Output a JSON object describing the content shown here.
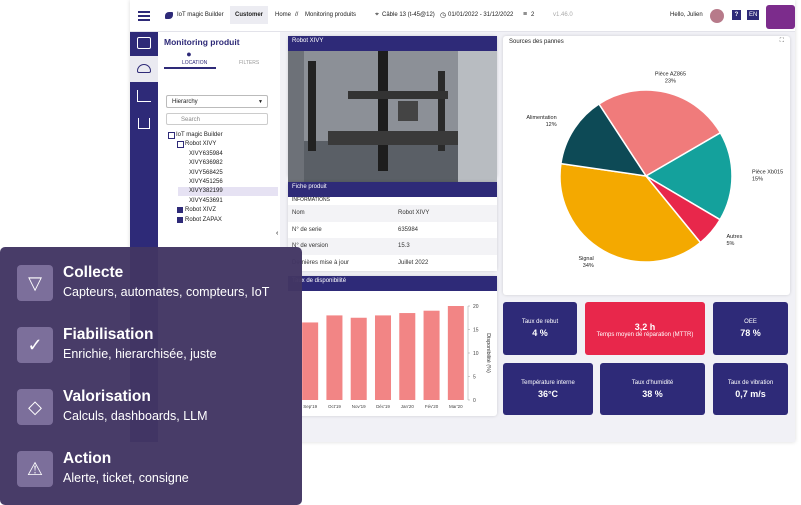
{
  "header": {
    "app_name": "IoT magic Builder",
    "tab": "Customer",
    "breadcrumb": [
      "Home",
      "//",
      "Monitoring produits"
    ],
    "location": "Câble 13 (t-45@12)",
    "date_range": "01/01/2022 - 31/12/2022",
    "filter_count": "2",
    "version": "v1.46.0",
    "greeting": "Hello, Julien",
    "help": "?",
    "language": "EN"
  },
  "panel": {
    "title": "Monitoring produit",
    "tabs": [
      "LOCATION",
      "FILTERS"
    ],
    "select": "Hierarchy",
    "search_placeholder": "Search",
    "tree": {
      "label": "IoT magic Builder",
      "children": [
        {
          "label": "Robot XIVY",
          "children": [
            {
              "label": "XIVY635984"
            },
            {
              "label": "XIVY636982"
            },
            {
              "label": "XIVY568425"
            },
            {
              "label": "XIVY451256"
            },
            {
              "label": "XIVY382199",
              "selected": true
            },
            {
              "label": "XIVY453691"
            }
          ]
        },
        {
          "label": "Robot XIVZ"
        },
        {
          "label": "Robot ZAPAX"
        }
      ]
    }
  },
  "product_card": {
    "title": "Robot XIVY"
  },
  "fiche": {
    "title": "Fiche produit",
    "section": "INFORMATIONS",
    "rows": [
      [
        "Nom",
        "Robot XIVY"
      ],
      [
        "N° de serie",
        "635984"
      ],
      [
        "N° de version",
        "15.3"
      ],
      [
        "Dernières mise à jour",
        "Juillet 2022"
      ]
    ]
  },
  "chart_data": [
    {
      "type": "pie",
      "title": "Sources des pannes",
      "categories": [
        "Pièce AZ865",
        "Pièce Xb015",
        "Autres",
        "Signal",
        "Alimentation"
      ],
      "values": [
        23,
        15,
        5,
        34,
        12
      ],
      "value_labels": [
        "23%",
        "15%",
        "5%",
        "34%",
        "12%"
      ],
      "colors": [
        "#f07b7b",
        "#14a19c",
        "#e8274b",
        "#f4a900",
        "#0d4a56"
      ]
    },
    {
      "type": "bar",
      "title": "Taux de disponibilité",
      "y_label": "Disponibilité (%)",
      "categories": [
        "Sep'19",
        "Oct'19",
        "Nov'19",
        "Déc'19",
        "Jan'20",
        "Fév'20",
        "Mar'20"
      ],
      "values": [
        16.5,
        18,
        17.5,
        18,
        18.5,
        19,
        20
      ],
      "color": "#f28585",
      "ylim": [
        0,
        20
      ],
      "yticks": [
        0,
        5,
        10,
        15,
        20
      ]
    }
  ],
  "kpis": [
    {
      "label": "Taux de rebut",
      "value": "4 %"
    },
    {
      "value": "3,2 h",
      "label": "Temps moyen de réparation (MTTR)"
    },
    {
      "label": "OEE",
      "value": "78 %"
    },
    {
      "label": "Température interne",
      "value": "36°C"
    },
    {
      "label": "Taux d'humidité",
      "value": "38 %"
    },
    {
      "label": "Taux de vibration",
      "value": "0,7 m/s"
    }
  ],
  "features": [
    {
      "title": "Collecte",
      "subtitle": "Capteurs, automates, compteurs, IoT"
    },
    {
      "title": "Fiabilisation",
      "subtitle": "Enrichie, hierarchisée, juste"
    },
    {
      "title": "Valorisation",
      "subtitle": "Calculs, dashboards, LLM"
    },
    {
      "title": "Action",
      "subtitle": "Alerte, ticket, consigne"
    }
  ]
}
